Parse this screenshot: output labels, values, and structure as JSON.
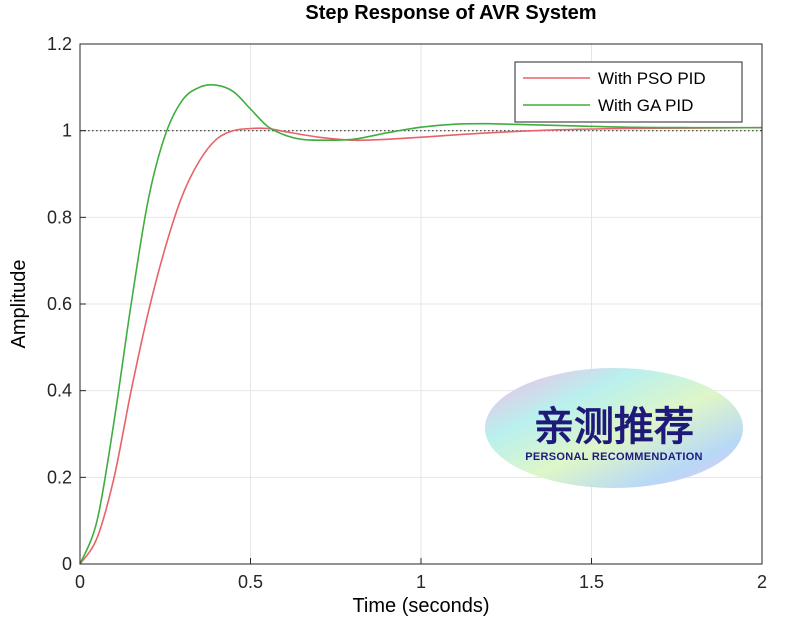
{
  "chart_data": {
    "type": "line",
    "title": "Step Response of AVR System",
    "xlabel": "Time (seconds)",
    "ylabel": "Amplitude",
    "xlim": [
      0,
      2
    ],
    "ylim": [
      0,
      1.2
    ],
    "xticks": [
      "0",
      "0.5",
      "1",
      "1.5",
      "2"
    ],
    "yticks": [
      "0",
      "0.2",
      "0.4",
      "0.6",
      "0.8",
      "1",
      "1.2"
    ],
    "grid": true,
    "legend_position": "top-right",
    "reference_line": {
      "y": 1,
      "style": "dotted"
    },
    "series": [
      {
        "name": "With PSO PID",
        "color": "#e8626a",
        "x": [
          0,
          0.05,
          0.1,
          0.15,
          0.2,
          0.25,
          0.3,
          0.35,
          0.4,
          0.45,
          0.5,
          0.55,
          0.6,
          0.7,
          0.8,
          0.9,
          1.0,
          1.2,
          1.4,
          1.6,
          1.8,
          2.0
        ],
        "y": [
          0,
          0.06,
          0.2,
          0.4,
          0.58,
          0.73,
          0.85,
          0.93,
          0.98,
          1.0,
          1.005,
          1.005,
          0.998,
          0.985,
          0.978,
          0.98,
          0.985,
          0.995,
          1.002,
          1.005,
          1.006,
          1.007
        ]
      },
      {
        "name": "With GA PID",
        "color": "#3fae3f",
        "x": [
          0,
          0.05,
          0.1,
          0.15,
          0.2,
          0.25,
          0.3,
          0.35,
          0.4,
          0.45,
          0.5,
          0.55,
          0.6,
          0.65,
          0.7,
          0.8,
          0.9,
          1.0,
          1.1,
          1.2,
          1.4,
          1.6,
          1.8,
          2.0
        ],
        "y": [
          0,
          0.1,
          0.33,
          0.6,
          0.84,
          0.99,
          1.07,
          1.1,
          1.105,
          1.09,
          1.05,
          1.01,
          0.99,
          0.98,
          0.978,
          0.98,
          0.995,
          1.008,
          1.015,
          1.016,
          1.012,
          1.008,
          1.007,
          1.007
        ]
      }
    ]
  },
  "watermark": {
    "main_text": "亲测推荐",
    "sub_text": "PERSONAL RECOMMENDATION"
  }
}
